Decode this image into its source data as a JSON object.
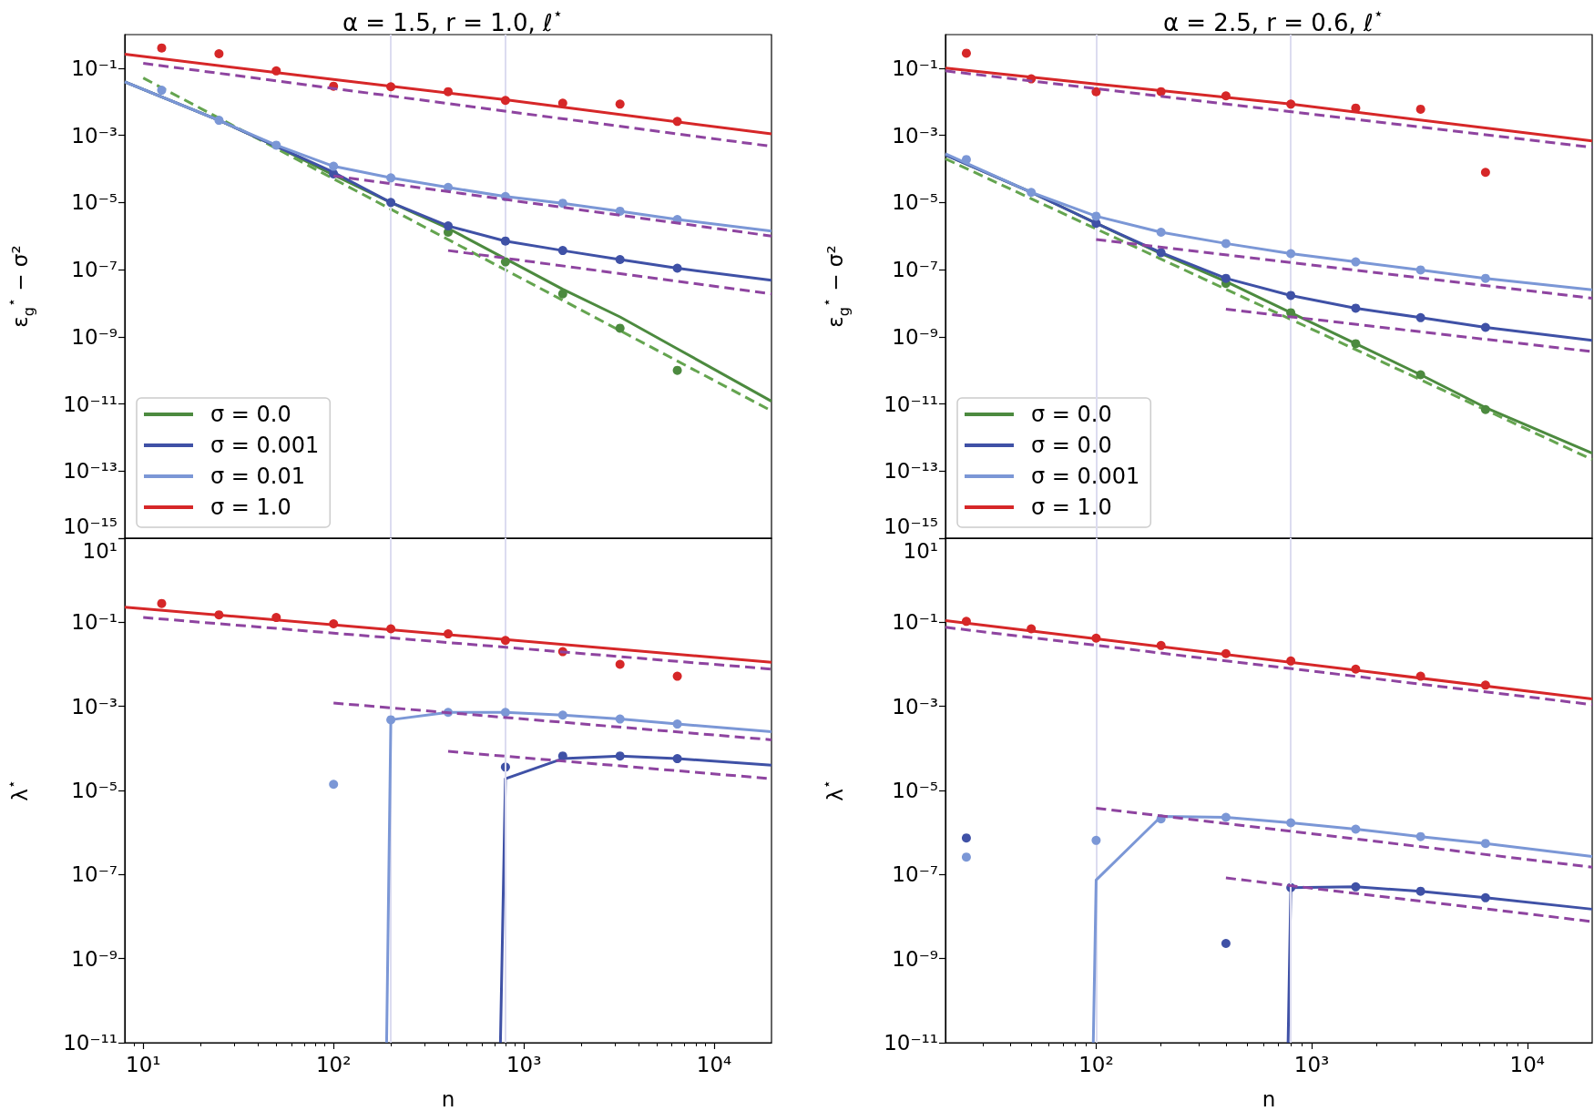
{
  "chart_data": [
    {
      "type": "line",
      "title": "α = 1.5, r = 1.0, ℓ$^{⋆}$",
      "ylabel": "ε$_{g}$$^{⋆}$ − σ²",
      "log": "xy",
      "xlim": [
        8,
        20000
      ],
      "ylim": [
        1e-15,
        1
      ],
      "yticks": [
        {
          "value": 1e-15,
          "label": "10⁻¹⁵"
        },
        {
          "value": 1e-13,
          "label": "10⁻¹³"
        },
        {
          "value": 1e-11,
          "label": "10⁻¹¹"
        },
        {
          "value": 1e-09,
          "label": "10⁻⁹"
        },
        {
          "value": 1e-07,
          "label": "10⁻⁷"
        },
        {
          "value": 1e-05,
          "label": "10⁻⁵"
        },
        {
          "value": 0.001,
          "label": "10⁻³"
        },
        {
          "value": 0.1,
          "label": "10⁻¹"
        }
      ],
      "tick_labels": "y",
      "legend": "bottom left",
      "ref_lines": [
        {
          "axis": "x",
          "value": 200,
          "color": "#dcdcf0"
        },
        {
          "axis": "x",
          "value": 800,
          "color": "#dcdcf0"
        }
      ],
      "series": [
        {
          "name": "σ = 0.0",
          "color": "#4c8a3f",
          "x": [
            8,
            25,
            50,
            100,
            200,
            400,
            800,
            1600,
            3200,
            6400,
            20000
          ],
          "values": [
            0.039,
            0.0028,
            0.00047,
            6.6e-05,
            1e-05,
            1.7e-06,
            2.1e-07,
            2.6e-08,
            3.9e-09,
            4.4e-10,
            1.2e-11
          ]
        },
        {
          "color": "#64a44f",
          "line_style": "dashed",
          "x": [
            10,
            20000
          ],
          "values": [
            0.051,
            6.2e-12
          ]
        },
        {
          "type": "scatter",
          "marker": "circle",
          "color": "#4c8a3f",
          "x": [
            400,
            800,
            1600,
            3200,
            6400
          ],
          "values": [
            1.3e-06,
            1.7e-07,
            1.9e-08,
            1.8e-09,
            1e-10
          ]
        },
        {
          "name": "σ = 0.001",
          "color": "#3f51a6",
          "x": [
            8,
            25,
            50,
            100,
            200,
            400,
            800,
            1600,
            3200,
            6400,
            20000
          ],
          "values": [
            0.039,
            0.0028,
            0.00047,
            7.9e-05,
            1e-05,
            2e-06,
            7.1e-07,
            3.7e-07,
            2e-07,
            1.1e-07,
            4.8e-08
          ]
        },
        {
          "type": "scatter",
          "marker": "circle",
          "color": "#3f51a6",
          "x": [
            100,
            200,
            400,
            800,
            1600,
            3200,
            6400
          ],
          "values": [
            7.1e-05,
            1e-05,
            2e-06,
            7.1e-07,
            3.7e-07,
            2e-07,
            1.1e-07
          ]
        },
        {
          "color": "#8e44a0",
          "line_style": "dashed",
          "x": [
            400,
            20000
          ],
          "values": [
            3.7e-07,
            1.9e-08
          ]
        },
        {
          "name": "σ = 0.01",
          "color": "#7b97d6",
          "x": [
            8,
            25,
            50,
            100,
            200,
            400,
            800,
            1600,
            3200,
            6400,
            20000
          ],
          "values": [
            0.039,
            0.0028,
            0.00051,
            0.00012,
            5.4e-05,
            2.8e-05,
            1.5e-05,
            9.5e-06,
            5.5e-06,
            3.1e-06,
            1.4e-06
          ]
        },
        {
          "type": "scatter",
          "marker": "circle",
          "color": "#7b97d6",
          "x": [
            12.5,
            25,
            50,
            100,
            200,
            400,
            800,
            1600,
            3200,
            6400
          ],
          "values": [
            0.022,
            0.0028,
            0.00051,
            0.00012,
            5.4e-05,
            2.8e-05,
            1.5e-05,
            9.5e-06,
            5.5e-06,
            3.1e-06
          ]
        },
        {
          "color": "#8e44a0",
          "line_style": "dashed",
          "x": [
            100,
            20000
          ],
          "values": [
            6.2e-05,
            1e-06
          ]
        },
        {
          "name": "σ = 1.0",
          "color": "#d62728",
          "x": [
            8,
            100,
            800,
            20000
          ],
          "values": [
            0.26,
            0.046,
            0.0115,
            0.0011
          ]
        },
        {
          "type": "scatter",
          "marker": "circle",
          "color": "#d62728",
          "x": [
            12.5,
            25,
            50,
            100,
            200,
            400,
            800,
            1600,
            3200,
            6400
          ],
          "values": [
            0.4,
            0.27,
            0.083,
            0.029,
            0.028,
            0.02,
            0.011,
            0.0091,
            0.0085,
            0.0026
          ]
        },
        {
          "color": "#8e44a0",
          "line_style": "dashed",
          "x": [
            10,
            20000
          ],
          "values": [
            0.14,
            0.00047
          ]
        }
      ]
    },
    {
      "type": "line",
      "title": "α = 2.5, r = 0.6, ℓ$^{⋆}$",
      "ylabel": "ε$_{g}$$^{⋆}$ − σ²",
      "log": "xy",
      "xlim": [
        20,
        20000
      ],
      "ylim": [
        1e-15,
        1
      ],
      "yticks": [
        {
          "value": 1e-15,
          "label": "10⁻¹⁵"
        },
        {
          "value": 1e-13,
          "label": "10⁻¹³"
        },
        {
          "value": 1e-11,
          "label": "10⁻¹¹"
        },
        {
          "value": 1e-09,
          "label": "10⁻⁹"
        },
        {
          "value": 1e-07,
          "label": "10⁻⁷"
        },
        {
          "value": 1e-05,
          "label": "10⁻⁵"
        },
        {
          "value": 0.001,
          "label": "10⁻³"
        },
        {
          "value": 0.1,
          "label": "10⁻¹"
        }
      ],
      "tick_labels": "y",
      "legend": "bottom left",
      "ref_lines": [
        {
          "axis": "x",
          "value": 100,
          "color": "#dcdcf0"
        },
        {
          "axis": "x",
          "value": 800,
          "color": "#dcdcf0"
        }
      ],
      "series": [
        {
          "name": "σ = 0.0",
          "color": "#4c8a3f",
          "x": [
            20,
            50,
            100,
            200,
            400,
            800,
            1600,
            3200,
            6400,
            20000
          ],
          "values": [
            0.00026,
            2e-05,
            2.4e-06,
            3e-07,
            4.4e-08,
            5.2e-09,
            6.2e-10,
            7.4e-11,
            7.8e-12,
            3.4e-13
          ]
        },
        {
          "color": "#64a44f",
          "line_style": "dashed",
          "x": [
            20,
            20000
          ],
          "values": [
            0.0002,
            2.2e-13
          ]
        },
        {
          "type": "scatter",
          "marker": "circle",
          "color": "#4c8a3f",
          "x": [
            400,
            800,
            1600,
            3200,
            6400
          ],
          "values": [
            3.9e-08,
            5.2e-09,
            6.2e-10,
            7.4e-11,
            6.8e-12
          ]
        },
        {
          "name": "σ = 0.0",
          "color": "#3f51a6",
          "x": [
            20,
            50,
            100,
            200,
            400,
            800,
            1600,
            3200,
            6400,
            20000
          ],
          "values": [
            0.00026,
            2e-05,
            2.4e-06,
            3.2e-07,
            5.5e-08,
            1.7e-08,
            7.1e-09,
            3.7e-09,
            1.9e-09,
            7.8e-10
          ]
        },
        {
          "type": "scatter",
          "marker": "circle",
          "color": "#3f51a6",
          "x": [
            100,
            200,
            400,
            800,
            1600,
            3200,
            6400
          ],
          "values": [
            2.4e-06,
            3.2e-07,
            5.5e-08,
            1.7e-08,
            7.1e-09,
            3.7e-09,
            1.9e-09
          ]
        },
        {
          "color": "#8e44a0",
          "line_style": "dashed",
          "x": [
            400,
            20000
          ],
          "values": [
            6.6e-09,
            3.6e-10
          ]
        },
        {
          "name": "σ = 0.001",
          "color": "#7b97d6",
          "x": [
            20,
            50,
            100,
            200,
            400,
            800,
            1600,
            3200,
            6400,
            20000
          ],
          "values": [
            0.00028,
            2e-05,
            3.9e-06,
            1.3e-06,
            6e-07,
            3e-07,
            1.7e-07,
            9.8e-08,
            5.5e-08,
            2.5e-08
          ]
        },
        {
          "type": "scatter",
          "marker": "circle",
          "color": "#7b97d6",
          "x": [
            25,
            50,
            100,
            200,
            400,
            800,
            1600,
            3200,
            6400
          ],
          "values": [
            0.00019,
            2e-05,
            3.9e-06,
            1.3e-06,
            6e-07,
            3e-07,
            1.7e-07,
            9.8e-08,
            5.5e-08
          ]
        },
        {
          "color": "#8e44a0",
          "line_style": "dashed",
          "x": [
            100,
            20000
          ],
          "values": [
            7.9e-07,
            1.4e-08
          ]
        },
        {
          "name": "σ = 1.0",
          "color": "#d62728",
          "x": [
            20,
            100,
            800,
            20000
          ],
          "values": [
            0.1,
            0.034,
            0.0085,
            0.00068
          ]
        },
        {
          "type": "scatter",
          "marker": "circle",
          "color": "#d62728",
          "x": [
            25,
            50,
            100,
            200,
            400,
            800,
            1600,
            3200,
            6400
          ],
          "values": [
            0.28,
            0.048,
            0.02,
            0.02,
            0.015,
            0.0085,
            0.0065,
            0.006,
            7.9e-05
          ]
        },
        {
          "color": "#8e44a0",
          "line_style": "dashed",
          "x": [
            20,
            20000
          ],
          "values": [
            0.083,
            0.00044
          ]
        }
      ]
    },
    {
      "type": "line",
      "xlabel": "n",
      "ylabel": "λ$^{⋆}$",
      "log": "xy",
      "xlim": [
        8,
        20000
      ],
      "ylim": [
        1e-11,
        10
      ],
      "xticks": [
        {
          "value": 9,
          "label": null
        },
        {
          "value": 10,
          "label": "10¹"
        },
        {
          "value": 20,
          "label": null
        },
        {
          "value": 30,
          "label": null
        },
        {
          "value": 40,
          "label": null
        },
        {
          "value": 50,
          "label": null
        },
        {
          "value": 60,
          "label": null
        },
        {
          "value": 70,
          "label": null
        },
        {
          "value": 80,
          "label": null
        },
        {
          "value": 90,
          "label": null
        },
        {
          "value": 100,
          "label": "10²"
        },
        {
          "value": 200,
          "label": null
        },
        {
          "value": 300,
          "label": null
        },
        {
          "value": 400,
          "label": null
        },
        {
          "value": 500,
          "label": null
        },
        {
          "value": 600,
          "label": null
        },
        {
          "value": 700,
          "label": null
        },
        {
          "value": 800,
          "label": null
        },
        {
          "value": 900,
          "label": null
        },
        {
          "value": 1000,
          "label": "10³"
        },
        {
          "value": 2000,
          "label": null
        },
        {
          "value": 3000,
          "label": null
        },
        {
          "value": 4000,
          "label": null
        },
        {
          "value": 5000,
          "label": null
        },
        {
          "value": 6000,
          "label": null
        },
        {
          "value": 7000,
          "label": null
        },
        {
          "value": 8000,
          "label": null
        },
        {
          "value": 9000,
          "label": null
        },
        {
          "value": 10000,
          "label": "10⁴"
        }
      ],
      "yticks": [
        {
          "value": 1e-11,
          "label": "10⁻¹¹"
        },
        {
          "value": 1e-09,
          "label": "10⁻⁹"
        },
        {
          "value": 1e-07,
          "label": "10⁻⁷"
        },
        {
          "value": 1e-05,
          "label": "10⁻⁵"
        },
        {
          "value": 0.001,
          "label": "10⁻³"
        },
        {
          "value": 0.1,
          "label": "10⁻¹"
        },
        {
          "value": 10,
          "label": "10¹"
        }
      ],
      "ref_lines": [
        {
          "axis": "x",
          "value": 200,
          "color": "#dcdcf0"
        },
        {
          "axis": "x",
          "value": 800,
          "color": "#dcdcf0"
        }
      ],
      "series": [
        {
          "color": "#3f51a6",
          "x": [
            753,
            800,
            1600,
            3200,
            6400,
            20000
          ],
          "values": [
            1e-11,
            1.9e-05,
            5.7e-05,
            6.6e-05,
            5.7e-05,
            4e-05
          ]
        },
        {
          "type": "scatter",
          "marker": "circle",
          "color": "#3f51a6",
          "x": [
            800,
            1600,
            3200,
            6400
          ],
          "values": [
            3.6e-05,
            6.6e-05,
            6.6e-05,
            5.7e-05
          ]
        },
        {
          "color": "#8e44a0",
          "line_style": "dashed",
          "x": [
            400,
            20000
          ],
          "values": [
            8.5e-05,
            1.9e-05
          ]
        },
        {
          "color": "#7b97d6",
          "x": [
            190,
            200,
            400,
            800,
            1600,
            3200,
            6400,
            20000
          ],
          "values": [
            1e-11,
            0.00048,
            0.00072,
            0.00072,
            0.00062,
            0.0005,
            0.00038,
            0.00025
          ]
        },
        {
          "type": "scatter",
          "marker": "circle",
          "color": "#7b97d6",
          "x": [
            100,
            200,
            400,
            800,
            1600,
            3200,
            6400
          ],
          "values": [
            1.4e-05,
            0.00048,
            0.00072,
            0.00072,
            0.00062,
            0.0005,
            0.00038
          ]
        },
        {
          "color": "#8e44a0",
          "line_style": "dashed",
          "x": [
            100,
            20000
          ],
          "values": [
            0.0012,
            0.00016
          ]
        },
        {
          "color": "#d62728",
          "x": [
            8,
            20000
          ],
          "values": [
            0.23,
            0.0112
          ]
        },
        {
          "type": "scatter",
          "marker": "circle",
          "color": "#d62728",
          "x": [
            12.5,
            25,
            50,
            100,
            200,
            400,
            800,
            1600,
            3200,
            6400
          ],
          "values": [
            0.28,
            0.15,
            0.13,
            0.092,
            0.07,
            0.053,
            0.037,
            0.02,
            0.01,
            0.0052
          ]
        },
        {
          "color": "#8e44a0",
          "line_style": "dashed",
          "x": [
            10,
            20000
          ],
          "values": [
            0.13,
            0.0077
          ]
        }
      ]
    },
    {
      "type": "line",
      "xlabel": "n",
      "ylabel": "λ$^{⋆}$",
      "log": "xy",
      "xlim": [
        20,
        20000
      ],
      "ylim": [
        1e-11,
        10
      ],
      "xticks": [
        {
          "value": 30,
          "label": null
        },
        {
          "value": 40,
          "label": null
        },
        {
          "value": 50,
          "label": null
        },
        {
          "value": 60,
          "label": null
        },
        {
          "value": 70,
          "label": null
        },
        {
          "value": 80,
          "label": null
        },
        {
          "value": 90,
          "label": null
        },
        {
          "value": 100,
          "label": "10²"
        },
        {
          "value": 200,
          "label": null
        },
        {
          "value": 300,
          "label": null
        },
        {
          "value": 400,
          "label": null
        },
        {
          "value": 500,
          "label": null
        },
        {
          "value": 600,
          "label": null
        },
        {
          "value": 700,
          "label": null
        },
        {
          "value": 800,
          "label": null
        },
        {
          "value": 900,
          "label": null
        },
        {
          "value": 1000,
          "label": "10³"
        },
        {
          "value": 2000,
          "label": null
        },
        {
          "value": 3000,
          "label": null
        },
        {
          "value": 4000,
          "label": null
        },
        {
          "value": 5000,
          "label": null
        },
        {
          "value": 6000,
          "label": null
        },
        {
          "value": 7000,
          "label": null
        },
        {
          "value": 8000,
          "label": null
        },
        {
          "value": 9000,
          "label": null
        },
        {
          "value": 10000,
          "label": "10⁴"
        }
      ],
      "yticks": [
        {
          "value": 1e-11,
          "label": "10⁻¹¹"
        },
        {
          "value": 1e-09,
          "label": "10⁻⁹"
        },
        {
          "value": 1e-07,
          "label": "10⁻⁷"
        },
        {
          "value": 1e-05,
          "label": "10⁻⁵"
        },
        {
          "value": 0.001,
          "label": "10⁻³"
        },
        {
          "value": 0.1,
          "label": "10⁻¹"
        },
        {
          "value": 10,
          "label": "10¹"
        }
      ],
      "ref_lines": [
        {
          "axis": "x",
          "value": 100,
          "color": "#dcdcf0"
        },
        {
          "axis": "x",
          "value": 800,
          "color": "#dcdcf0"
        }
      ],
      "series": [
        {
          "color": "#3f51a6",
          "x": [
            777,
            800,
            1600,
            3200,
            6400,
            20000
          ],
          "values": [
            1e-11,
            4.9e-08,
            5.1e-08,
            4e-08,
            2.8e-08,
            1.5e-08
          ]
        },
        {
          "type": "scatter",
          "marker": "circle",
          "color": "#3f51a6",
          "x": [
            25,
            400,
            800,
            1600,
            3200,
            6400
          ],
          "values": [
            7.4e-07,
            2.3e-09,
            4.9e-08,
            5.1e-08,
            4e-08,
            2.8e-08
          ]
        },
        {
          "color": "#8e44a0",
          "line_style": "dashed",
          "x": [
            400,
            20000
          ],
          "values": [
            8.3e-08,
            7.6e-09
          ]
        },
        {
          "color": "#7b97d6",
          "x": [
            97,
            100,
            200,
            400,
            800,
            1600,
            3200,
            6400,
            20000
          ],
          "values": [
            1e-11,
            7.4e-08,
            2.4e-06,
            2.3e-06,
            1.7e-06,
            1.2e-06,
            8e-07,
            5.5e-07,
            2.7e-07
          ]
        },
        {
          "type": "scatter",
          "marker": "circle",
          "color": "#7b97d6",
          "x": [
            25,
            100,
            200,
            400,
            800,
            1600,
            3200,
            6400
          ],
          "values": [
            2.6e-07,
            6.5e-07,
            2.1e-06,
            2.3e-06,
            1.7e-06,
            1.2e-06,
            8e-07,
            5.5e-07
          ]
        },
        {
          "color": "#8e44a0",
          "line_style": "dashed",
          "x": [
            100,
            20000
          ],
          "values": [
            3.8e-06,
            1.5e-07
          ]
        },
        {
          "color": "#d62728",
          "x": [
            20,
            20000
          ],
          "values": [
            0.11,
            0.0015
          ]
        },
        {
          "type": "scatter",
          "marker": "circle",
          "color": "#d62728",
          "x": [
            25,
            50,
            100,
            200,
            400,
            800,
            1600,
            3200,
            6400
          ],
          "values": [
            0.105,
            0.07,
            0.042,
            0.028,
            0.018,
            0.012,
            0.0077,
            0.0052,
            0.0032
          ]
        },
        {
          "color": "#8e44a0",
          "line_style": "dashed",
          "x": [
            20,
            20000
          ],
          "values": [
            0.076,
            0.0011
          ]
        }
      ]
    }
  ]
}
